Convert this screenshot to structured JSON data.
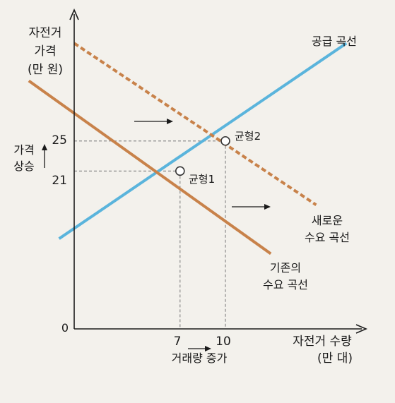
{
  "chart_data": {
    "type": "line",
    "ylabel_lines": [
      "자전거",
      "가격",
      "(만 원)"
    ],
    "xlabel_lines": [
      "자전거 수량",
      "(만 대)"
    ],
    "origin_label": "0",
    "x_ticks": [
      7,
      10
    ],
    "y_ticks": [
      25,
      21
    ],
    "xlim": [
      0,
      24
    ],
    "ylim": [
      0,
      41
    ],
    "series": [
      {
        "name": "공급 곡선",
        "color": "#5ab4dc",
        "style": "solid",
        "points": [
          [
            -1,
            12
          ],
          [
            18,
            38
          ]
        ]
      },
      {
        "name_lines": [
          "기존의",
          "수요 곡선"
        ],
        "color": "#c8824a",
        "style": "solid",
        "points": [
          [
            -3,
            33
          ],
          [
            13,
            10
          ]
        ]
      },
      {
        "name_lines": [
          "새로운",
          "수요 곡선"
        ],
        "color": "#c8824a",
        "style": "dashed",
        "points": [
          [
            0,
            38
          ],
          [
            16,
            16.5
          ]
        ]
      }
    ],
    "points": [
      {
        "label": "균형1",
        "x": 7,
        "y": 21
      },
      {
        "label": "균형2",
        "x": 10,
        "y": 25
      }
    ],
    "annotations": {
      "price_rise": [
        "가격",
        "상승"
      ],
      "quantity_increase": "거래량 증가"
    }
  },
  "colors": {
    "background": "#f3f1ec",
    "axis": "#1a1a1a",
    "supply": "#5ab4dc",
    "demand": "#c8824a",
    "guide": "#8a8a8a"
  }
}
